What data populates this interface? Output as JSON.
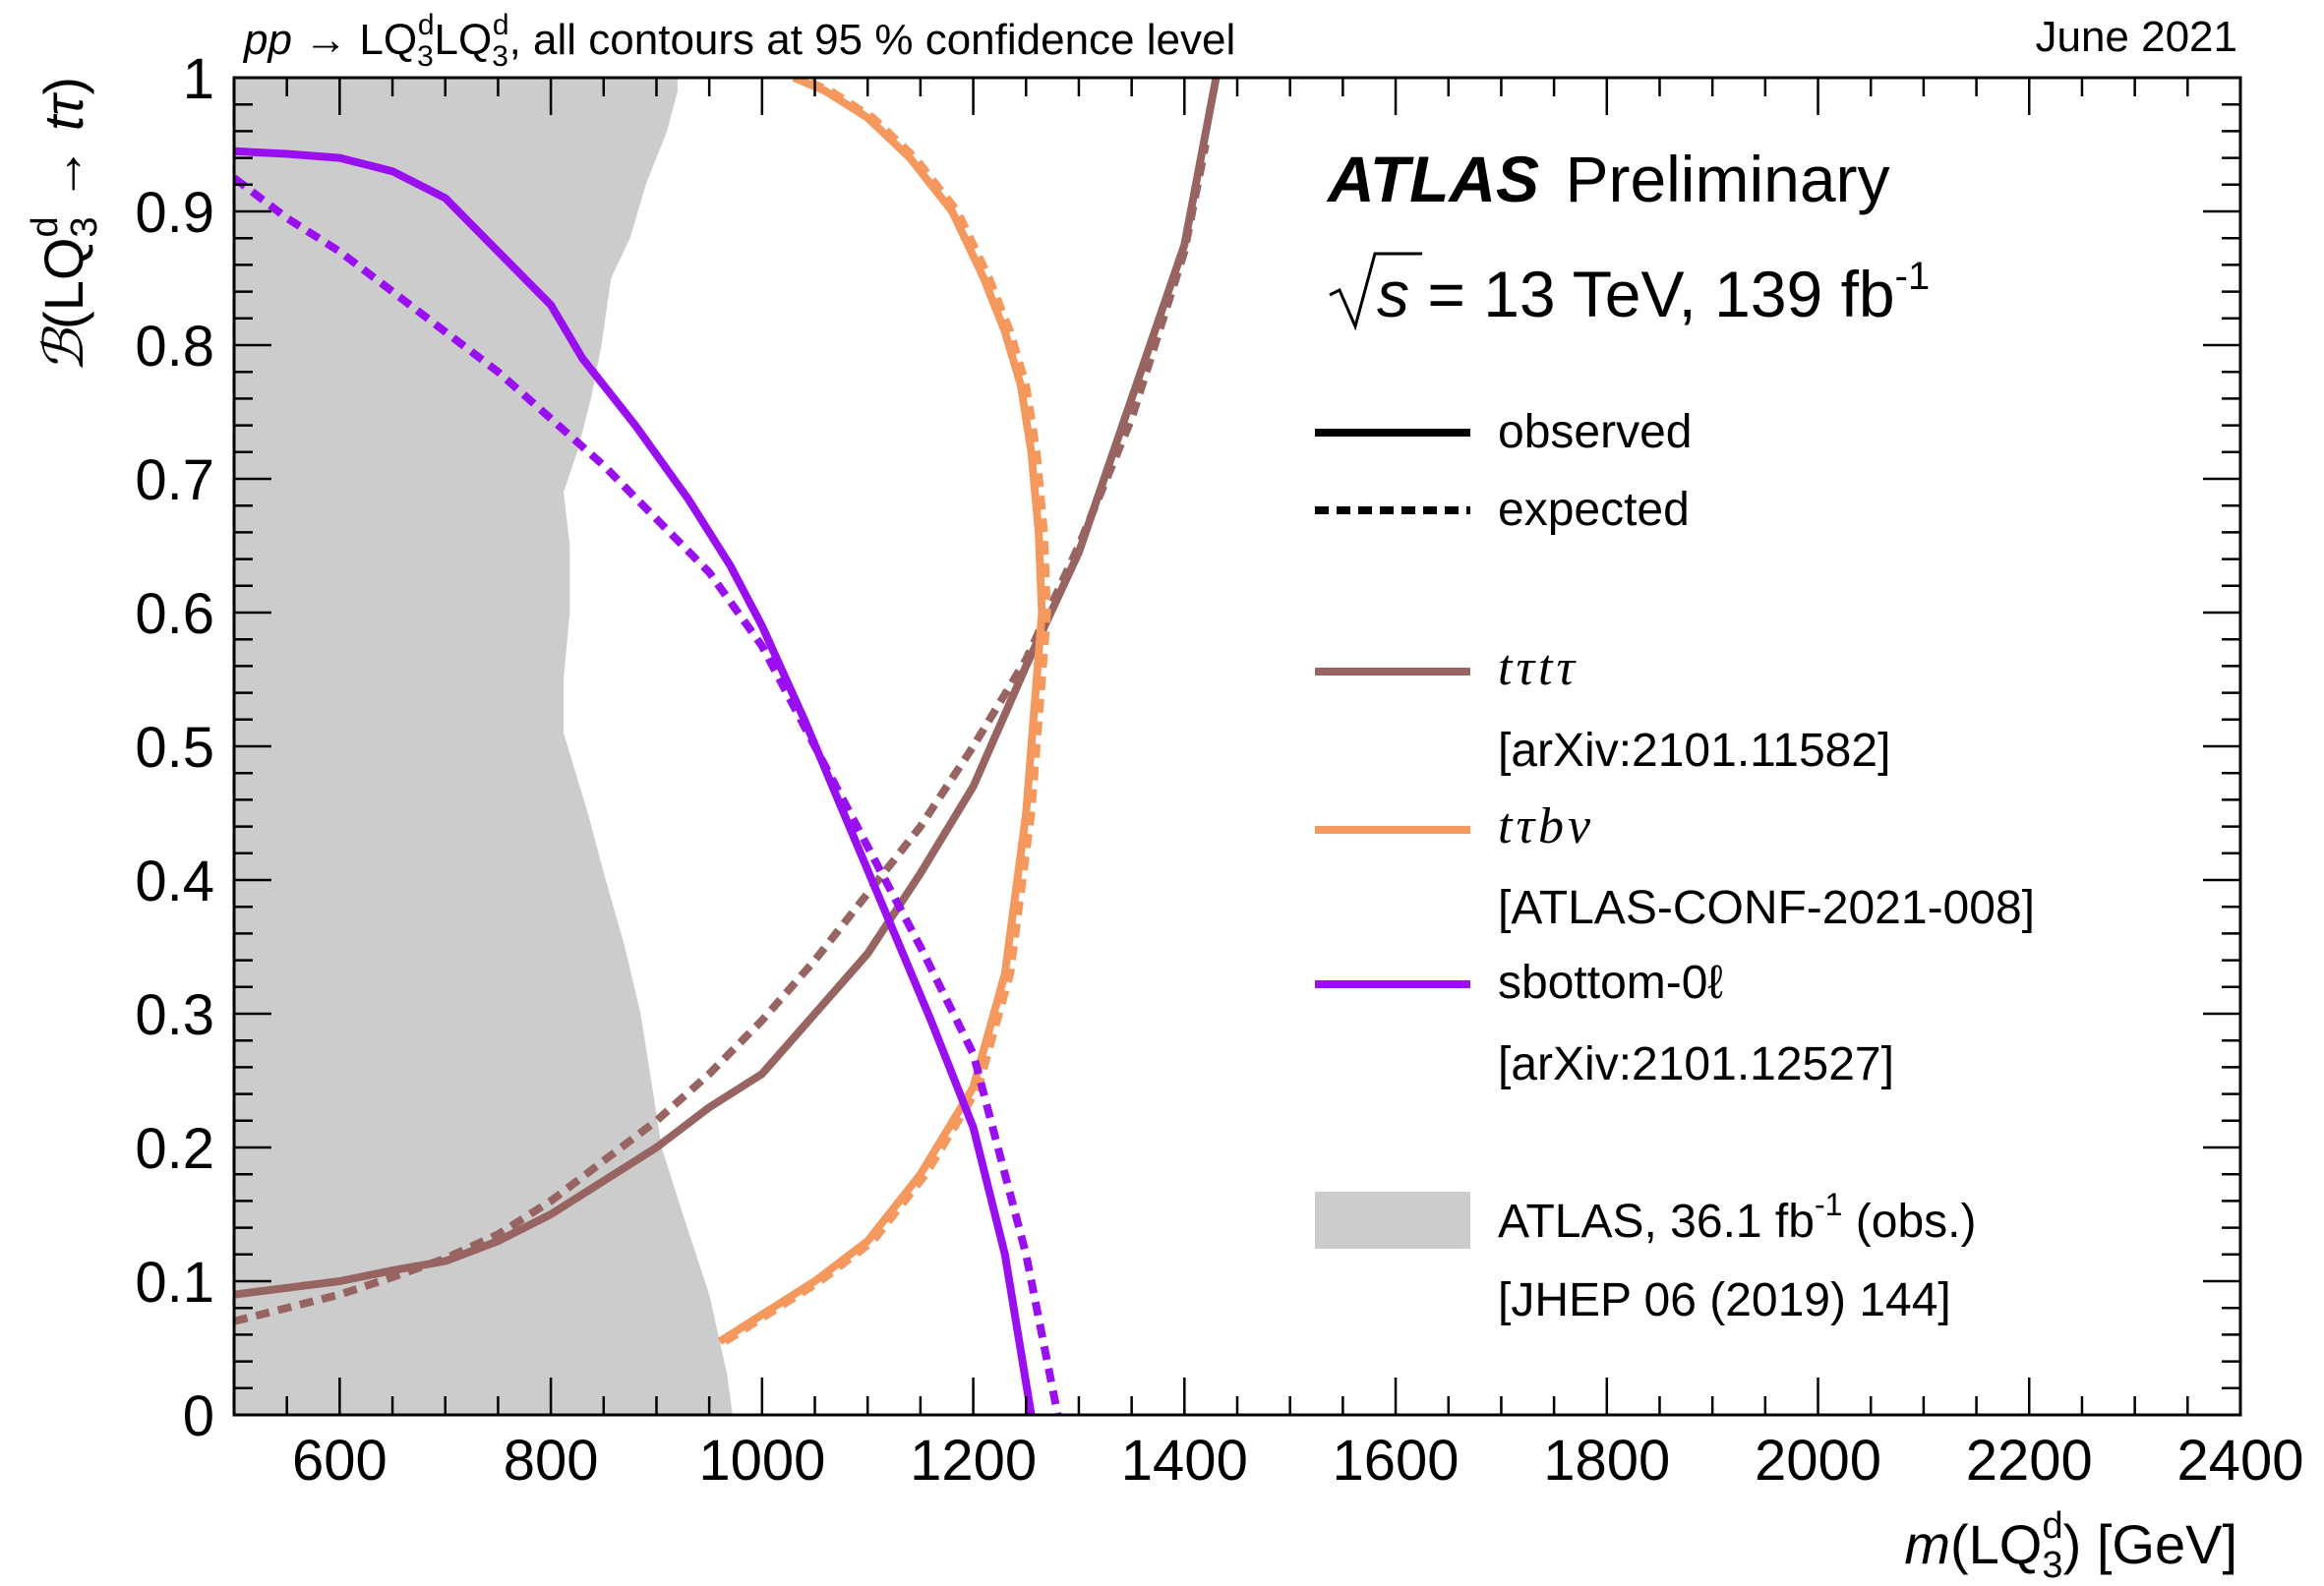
{
  "header": {
    "process_prefix": "pp",
    "process_arrow": "→",
    "lq_name": "LQ",
    "lq_sub": "3",
    "lq_sup": "d",
    "process_suffix": ", all contours at 95 % confidence level",
    "date": "June 2021"
  },
  "atlas": {
    "brand": "ATLAS",
    "status": "Preliminary",
    "sqrt_s": "s",
    "energy_lumi": " = 13 TeV, 139 fb",
    "lumi_exp": "-1"
  },
  "legend": {
    "style_observed": "observed",
    "style_expected": "expected",
    "entries": [
      {
        "label": "tτtτ",
        "reference": "[arXiv:2101.11582]",
        "color": "#976461"
      },
      {
        "label": "tτbν",
        "reference": "[ATLAS-CONF-2021-008]",
        "color": "#f5985d"
      },
      {
        "label": "sbottom-0ℓ",
        "reference": "[arXiv:2101.12527]",
        "color": "#9a0ff0"
      }
    ],
    "band": {
      "label_main": "ATLAS, 36.1 fb",
      "label_exp": "-1",
      "label_tail": " (obs.)",
      "reference": "[JHEP 06 (2019) 144]",
      "color": "#cccccc"
    }
  },
  "chart_data": {
    "type": "line",
    "title": "pp → LQ3d LQ3d, all contours at 95 % confidence level",
    "xlabel": "m(LQ3d) [GeV]",
    "ylabel": "ℬ(LQ3d → tτ)",
    "xlim": [
      500,
      2400
    ],
    "ylim": [
      0,
      1
    ],
    "x_ticks": [
      600,
      800,
      1000,
      1200,
      1400,
      1600,
      1800,
      2000,
      2200,
      2400
    ],
    "y_ticks": [
      0,
      0.1,
      0.2,
      0.3,
      0.4,
      0.5,
      0.6,
      0.7,
      0.8,
      0.9,
      1
    ],
    "x_tick_labels": [
      "600",
      "800",
      "1000",
      "1200",
      "1400",
      "1600",
      "1800",
      "2000",
      "2200",
      "2400"
    ],
    "y_tick_labels": [
      "0",
      "0.1",
      "0.2",
      "0.3",
      "0.4",
      "0.5",
      "0.6",
      "0.7",
      "0.8",
      "0.9",
      "1"
    ],
    "xlabel_text": {
      "m": "m",
      "lq": "LQ",
      "sub": "3",
      "sup": "d",
      "unit": " [GeV]"
    },
    "ylabel_text": {
      "b": "ℬ",
      "lq": "LQ",
      "sub": "3",
      "sup": "d",
      "arrow": " → ",
      "final": "tτ"
    },
    "excluded_band": {
      "name": "ATLAS, 36.1 fb-1 (obs.)",
      "boundary": [
        [
          500,
          0
        ],
        [
          972,
          0
        ],
        [
          967,
          0.03
        ],
        [
          950,
          0.09
        ],
        [
          925,
          0.15
        ],
        [
          905,
          0.2
        ],
        [
          895,
          0.25
        ],
        [
          885,
          0.3
        ],
        [
          870,
          0.35
        ],
        [
          852,
          0.4
        ],
        [
          835,
          0.45
        ],
        [
          812,
          0.51
        ],
        [
          812,
          0.55
        ],
        [
          818,
          0.6
        ],
        [
          818,
          0.65
        ],
        [
          812,
          0.69
        ],
        [
          825,
          0.72
        ],
        [
          838,
          0.76
        ],
        [
          848,
          0.8
        ],
        [
          857,
          0.85
        ],
        [
          875,
          0.88
        ],
        [
          890,
          0.92
        ],
        [
          910,
          0.96
        ],
        [
          920,
          0.99
        ],
        [
          920,
          1
        ],
        [
          500,
          1
        ]
      ]
    },
    "series": [
      {
        "name": "tτtτ observed",
        "style": "solid",
        "color": "#976461",
        "x": [
          500,
          550,
          600,
          650,
          700,
          750,
          800,
          850,
          900,
          950,
          1000,
          1050,
          1100,
          1150,
          1200,
          1250,
          1300,
          1350,
          1400,
          1430
        ],
        "y": [
          0.09,
          0.095,
          0.1,
          0.108,
          0.115,
          0.13,
          0.15,
          0.175,
          0.2,
          0.23,
          0.255,
          0.3,
          0.345,
          0.405,
          0.47,
          0.56,
          0.645,
          0.76,
          0.875,
          1.0
        ]
      },
      {
        "name": "tτtτ expected",
        "style": "dashed",
        "color": "#976461",
        "x": [
          500,
          550,
          600,
          650,
          700,
          750,
          800,
          850,
          900,
          950,
          1000,
          1050,
          1100,
          1150,
          1200,
          1250,
          1300,
          1350,
          1400,
          1420
        ],
        "y": [
          0.07,
          0.08,
          0.09,
          0.103,
          0.117,
          0.135,
          0.16,
          0.19,
          0.22,
          0.255,
          0.295,
          0.34,
          0.39,
          0.44,
          0.5,
          0.565,
          0.65,
          0.745,
          0.87,
          0.95
        ]
      },
      {
        "name": "tτbν observed",
        "style": "solid",
        "color": "#f5985d",
        "x": [
          960,
          1000,
          1050,
          1100,
          1150,
          1200,
          1230,
          1250,
          1260,
          1265,
          1262,
          1255,
          1245,
          1230,
          1210,
          1180,
          1140,
          1100,
          1060,
          1030
        ],
        "y": [
          0.055,
          0.075,
          0.1,
          0.13,
          0.18,
          0.245,
          0.33,
          0.45,
          0.55,
          0.6,
          0.66,
          0.72,
          0.77,
          0.81,
          0.85,
          0.9,
          0.94,
          0.97,
          0.99,
          1.0
        ]
      },
      {
        "name": "tτbν expected",
        "style": "dashed",
        "color": "#f5985d",
        "x": [
          965,
          1005,
          1055,
          1105,
          1155,
          1205,
          1235,
          1255,
          1265,
          1270,
          1267,
          1260,
          1250,
          1235,
          1215,
          1185,
          1145,
          1105,
          1065,
          1035
        ],
        "y": [
          0.055,
          0.075,
          0.1,
          0.13,
          0.18,
          0.245,
          0.33,
          0.45,
          0.55,
          0.6,
          0.66,
          0.72,
          0.77,
          0.81,
          0.85,
          0.9,
          0.94,
          0.97,
          0.99,
          1.0
        ]
      },
      {
        "name": "sbottom-0ℓ observed",
        "style": "solid",
        "color": "#9a0ff0",
        "x": [
          500,
          550,
          600,
          650,
          700,
          750,
          800,
          830,
          880,
          930,
          970,
          1000,
          1040,
          1080,
          1120,
          1160,
          1200,
          1230,
          1255
        ],
        "y": [
          0.945,
          0.943,
          0.94,
          0.93,
          0.91,
          0.87,
          0.83,
          0.79,
          0.74,
          0.685,
          0.635,
          0.59,
          0.52,
          0.445,
          0.37,
          0.295,
          0.215,
          0.12,
          0.0
        ]
      },
      {
        "name": "sbottom-0ℓ expected",
        "style": "dashed",
        "color": "#9a0ff0",
        "x": [
          500,
          550,
          600,
          650,
          700,
          750,
          800,
          850,
          900,
          950,
          1000,
          1050,
          1100,
          1150,
          1200,
          1250,
          1280
        ],
        "y": [
          0.925,
          0.895,
          0.87,
          0.84,
          0.81,
          0.78,
          0.745,
          0.71,
          0.67,
          0.63,
          0.575,
          0.5,
          0.425,
          0.35,
          0.27,
          0.12,
          0.0
        ]
      }
    ]
  }
}
